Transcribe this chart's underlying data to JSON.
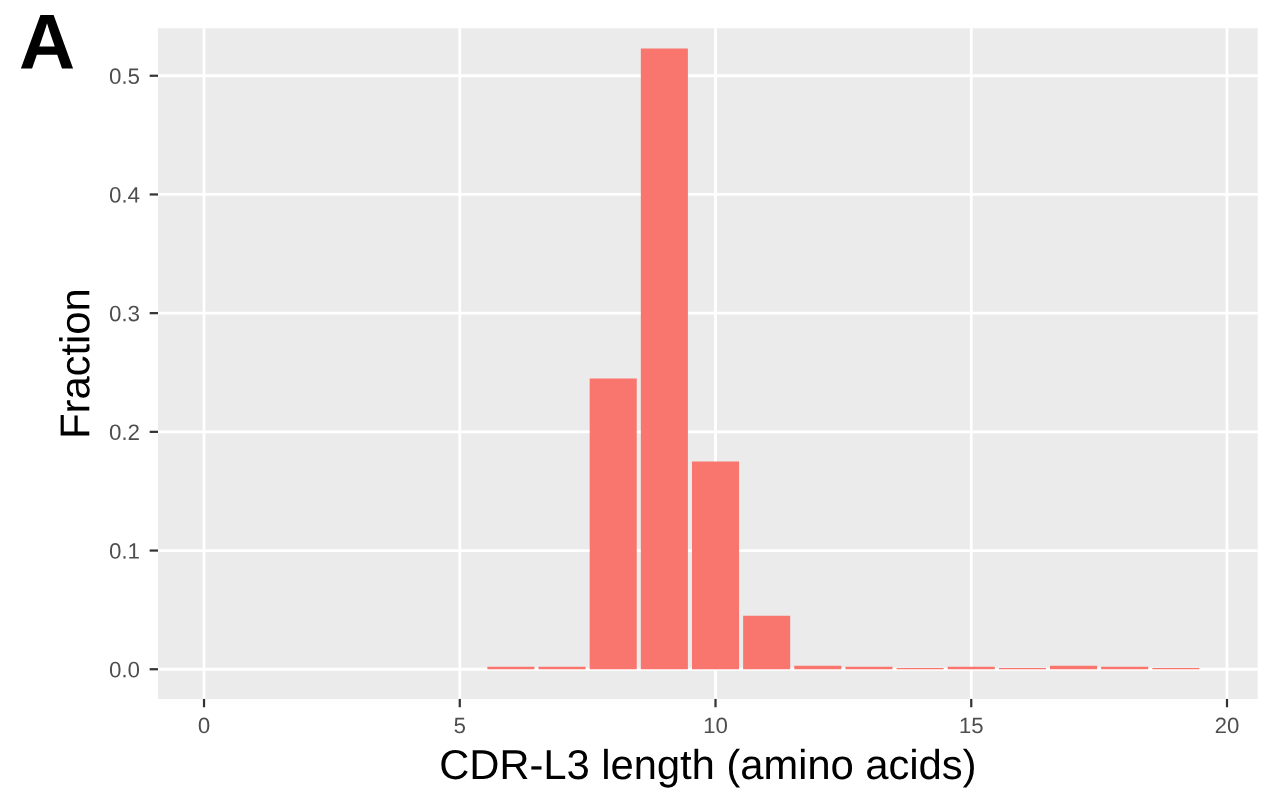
{
  "chart_data": {
    "type": "histogram",
    "xlabel": "CDR-L3 length (amino acids)",
    "ylabel": "Fraction",
    "annotations": [
      "A"
    ],
    "bins": [
      5.5,
      6.5,
      7.5,
      8.5,
      9.5,
      10.5,
      11.5,
      12.5,
      13.5,
      14.5,
      15.5,
      16.5,
      17.5,
      18.5,
      19.5
    ],
    "values": [
      0.002,
      0.002,
      0.245,
      0.523,
      0.175,
      0.045,
      0.003,
      0.002,
      0.001,
      0.002,
      0.001,
      0.003,
      0.002,
      0.001
    ],
    "color": "#f8766d",
    "xlim": [
      -0.9,
      20.6
    ],
    "xticks": [
      0,
      5,
      10,
      15,
      20
    ],
    "ylim": [
      -0.025,
      0.54
    ],
    "yticks": [
      {
        "value": 0,
        "label": "0.0"
      },
      {
        "value": 0.1,
        "label": "0.1"
      },
      {
        "value": 0.2,
        "label": "0.2"
      },
      {
        "value": 0.3,
        "label": "0.3"
      },
      {
        "value": 0.4,
        "label": "0.4"
      },
      {
        "value": 0.5,
        "label": "0.5"
      }
    ],
    "grid": true
  }
}
